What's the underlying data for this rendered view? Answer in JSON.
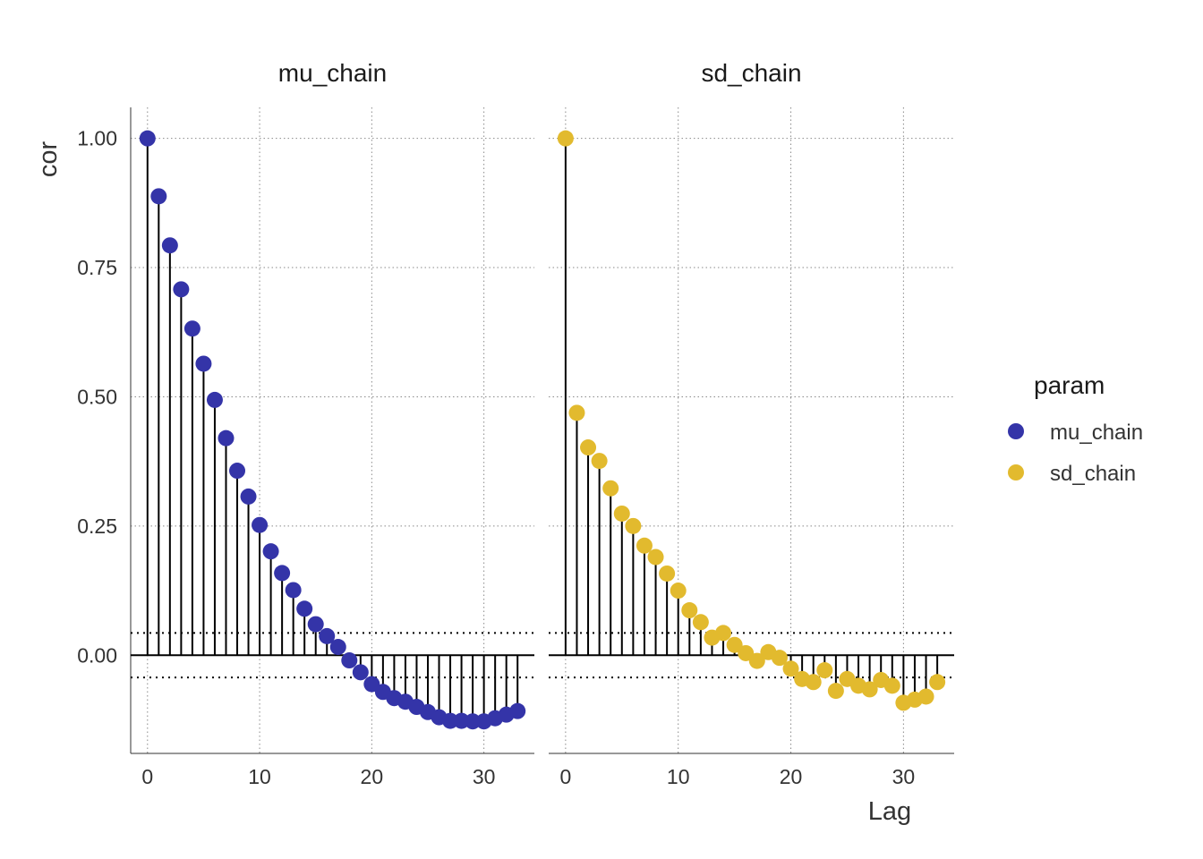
{
  "chart_data": {
    "type": "scatter",
    "subtype": "acf-lollipop",
    "ylabel": "cor",
    "xlabel": "Lag",
    "xlim": [
      -1.5,
      34.5
    ],
    "ylim": [
      -0.19,
      1.06
    ],
    "xticks": [
      0,
      10,
      20,
      30
    ],
    "yticks": [
      0,
      0.25,
      0.5,
      0.75,
      1.0
    ],
    "ytick_labels": [
      "0.00",
      "0.25",
      "0.50",
      "0.75",
      "1.00"
    ],
    "confidence_band": [
      -0.043,
      0.043
    ],
    "grid": true,
    "legend": {
      "title": "param",
      "position": "right",
      "entries": [
        {
          "label": "mu_chain",
          "color": "#3434A8"
        },
        {
          "label": "sd_chain",
          "color": "#E2BA2E"
        }
      ]
    },
    "panels": [
      {
        "name": "mu_chain",
        "color": "#3434A8",
        "lags": [
          0,
          1,
          2,
          3,
          4,
          5,
          6,
          7,
          8,
          9,
          10,
          11,
          12,
          13,
          14,
          15,
          16,
          17,
          18,
          19,
          20,
          21,
          22,
          23,
          24,
          25,
          26,
          27,
          28,
          29,
          30,
          31,
          32,
          33
        ],
        "values": [
          1.0,
          0.888,
          0.793,
          0.708,
          0.632,
          0.564,
          0.494,
          0.42,
          0.357,
          0.307,
          0.252,
          0.201,
          0.159,
          0.126,
          0.09,
          0.06,
          0.037,
          0.016,
          -0.01,
          -0.033,
          -0.056,
          -0.071,
          -0.083,
          -0.09,
          -0.1,
          -0.11,
          -0.12,
          -0.127,
          -0.127,
          -0.128,
          -0.128,
          -0.122,
          -0.115,
          -0.108
        ]
      },
      {
        "name": "sd_chain",
        "color": "#E2BA2E",
        "lags": [
          0,
          1,
          2,
          3,
          4,
          5,
          6,
          7,
          8,
          9,
          10,
          11,
          12,
          13,
          14,
          15,
          16,
          17,
          18,
          19,
          20,
          21,
          22,
          23,
          24,
          25,
          26,
          27,
          28,
          29,
          30,
          31,
          32,
          33
        ],
        "values": [
          1.0,
          0.469,
          0.402,
          0.376,
          0.323,
          0.274,
          0.25,
          0.212,
          0.19,
          0.158,
          0.125,
          0.087,
          0.064,
          0.034,
          0.043,
          0.02,
          0.004,
          -0.011,
          0.006,
          -0.005,
          -0.026,
          -0.046,
          -0.052,
          -0.029,
          -0.069,
          -0.046,
          -0.059,
          -0.066,
          -0.048,
          -0.059,
          -0.092,
          -0.086,
          -0.08,
          -0.052
        ]
      }
    ]
  }
}
